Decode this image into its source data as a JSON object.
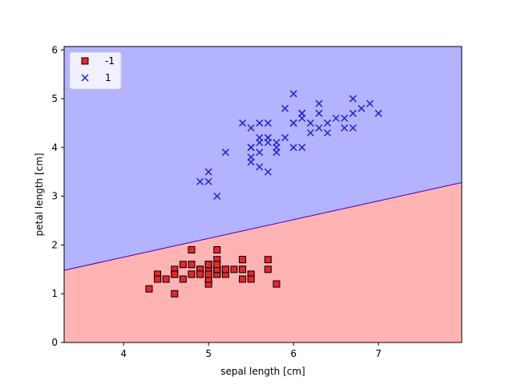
{
  "chart_data": {
    "type": "scatter",
    "title": "",
    "xlabel": "sepal length [cm]",
    "ylabel": "petal length [cm]",
    "xlim": [
      3.3,
      7.98
    ],
    "ylim": [
      0,
      6.07
    ],
    "xticks": [
      4,
      5,
      6,
      7
    ],
    "yticks": [
      0,
      1,
      2,
      3,
      4,
      5,
      6
    ],
    "xtick_labels": [
      "4",
      "5",
      "6",
      "7"
    ],
    "ytick_labels": [
      "0",
      "1",
      "2",
      "3",
      "4",
      "5",
      "6"
    ],
    "grid": false,
    "legend_position": "top-left",
    "decision_regions": {
      "boundary": [
        [
          3.3,
          1.48
        ],
        [
          7.98,
          3.28
        ]
      ],
      "above_class": "1",
      "below_class": "-1",
      "above_color": "#b3b3ff",
      "below_color": "#ffb3b3",
      "boundary_color": "#3f00bf"
    },
    "series": [
      {
        "name": "-1",
        "marker": "square",
        "color": "#e8262a",
        "edge_color": "#000000",
        "points": [
          [
            5.1,
            1.4
          ],
          [
            4.9,
            1.4
          ],
          [
            4.7,
            1.3
          ],
          [
            4.6,
            1.5
          ],
          [
            5.0,
            1.4
          ],
          [
            5.4,
            1.7
          ],
          [
            4.6,
            1.4
          ],
          [
            5.0,
            1.5
          ],
          [
            4.4,
            1.4
          ],
          [
            4.9,
            1.5
          ],
          [
            5.4,
            1.5
          ],
          [
            4.8,
            1.6
          ],
          [
            4.8,
            1.4
          ],
          [
            4.3,
            1.1
          ],
          [
            5.8,
            1.2
          ],
          [
            5.7,
            1.5
          ],
          [
            5.4,
            1.3
          ],
          [
            5.1,
            1.4
          ],
          [
            5.7,
            1.7
          ],
          [
            5.1,
            1.5
          ],
          [
            5.4,
            1.7
          ],
          [
            5.1,
            1.5
          ],
          [
            4.6,
            1.0
          ],
          [
            5.1,
            1.7
          ],
          [
            4.8,
            1.9
          ],
          [
            5.0,
            1.6
          ],
          [
            5.0,
            1.6
          ],
          [
            5.2,
            1.5
          ],
          [
            5.2,
            1.4
          ],
          [
            4.7,
            1.6
          ],
          [
            4.8,
            1.6
          ],
          [
            5.4,
            1.5
          ],
          [
            5.2,
            1.5
          ],
          [
            5.5,
            1.4
          ],
          [
            4.9,
            1.5
          ],
          [
            5.0,
            1.2
          ],
          [
            5.5,
            1.3
          ],
          [
            4.9,
            1.4
          ],
          [
            4.4,
            1.3
          ],
          [
            5.1,
            1.5
          ],
          [
            5.0,
            1.3
          ],
          [
            4.5,
            1.3
          ],
          [
            4.4,
            1.3
          ],
          [
            5.0,
            1.6
          ],
          [
            5.1,
            1.9
          ],
          [
            4.8,
            1.4
          ],
          [
            5.1,
            1.6
          ],
          [
            4.6,
            1.4
          ],
          [
            5.3,
            1.5
          ],
          [
            5.0,
            1.4
          ]
        ]
      },
      {
        "name": "1",
        "marker": "x",
        "color": "#2222dd",
        "points": [
          [
            7.0,
            4.7
          ],
          [
            6.4,
            4.5
          ],
          [
            6.9,
            4.9
          ],
          [
            5.5,
            4.0
          ],
          [
            6.5,
            4.6
          ],
          [
            5.7,
            4.5
          ],
          [
            6.3,
            4.7
          ],
          [
            4.9,
            3.3
          ],
          [
            6.6,
            4.6
          ],
          [
            5.2,
            3.9
          ],
          [
            5.0,
            3.5
          ],
          [
            5.9,
            4.2
          ],
          [
            6.0,
            4.0
          ],
          [
            6.1,
            4.7
          ],
          [
            5.6,
            3.6
          ],
          [
            6.7,
            4.4
          ],
          [
            5.6,
            4.5
          ],
          [
            5.8,
            4.1
          ],
          [
            6.2,
            4.5
          ],
          [
            5.6,
            3.9
          ],
          [
            5.9,
            4.8
          ],
          [
            6.1,
            4.0
          ],
          [
            6.3,
            4.9
          ],
          [
            6.1,
            4.7
          ],
          [
            6.4,
            4.3
          ],
          [
            6.6,
            4.4
          ],
          [
            6.8,
            4.8
          ],
          [
            6.7,
            5.0
          ],
          [
            6.0,
            4.5
          ],
          [
            5.7,
            3.5
          ],
          [
            5.5,
            3.8
          ],
          [
            5.5,
            3.7
          ],
          [
            5.8,
            3.9
          ],
          [
            6.0,
            5.1
          ],
          [
            5.4,
            4.5
          ],
          [
            6.0,
            4.5
          ],
          [
            6.7,
            4.7
          ],
          [
            6.3,
            4.4
          ],
          [
            5.6,
            4.1
          ],
          [
            5.5,
            4.0
          ],
          [
            5.5,
            4.4
          ],
          [
            6.1,
            4.6
          ],
          [
            5.8,
            4.0
          ],
          [
            5.0,
            3.3
          ],
          [
            5.6,
            4.2
          ],
          [
            5.7,
            4.2
          ],
          [
            5.7,
            4.2
          ],
          [
            6.2,
            4.3
          ],
          [
            5.1,
            3.0
          ],
          [
            5.7,
            4.1
          ]
        ]
      }
    ]
  }
}
